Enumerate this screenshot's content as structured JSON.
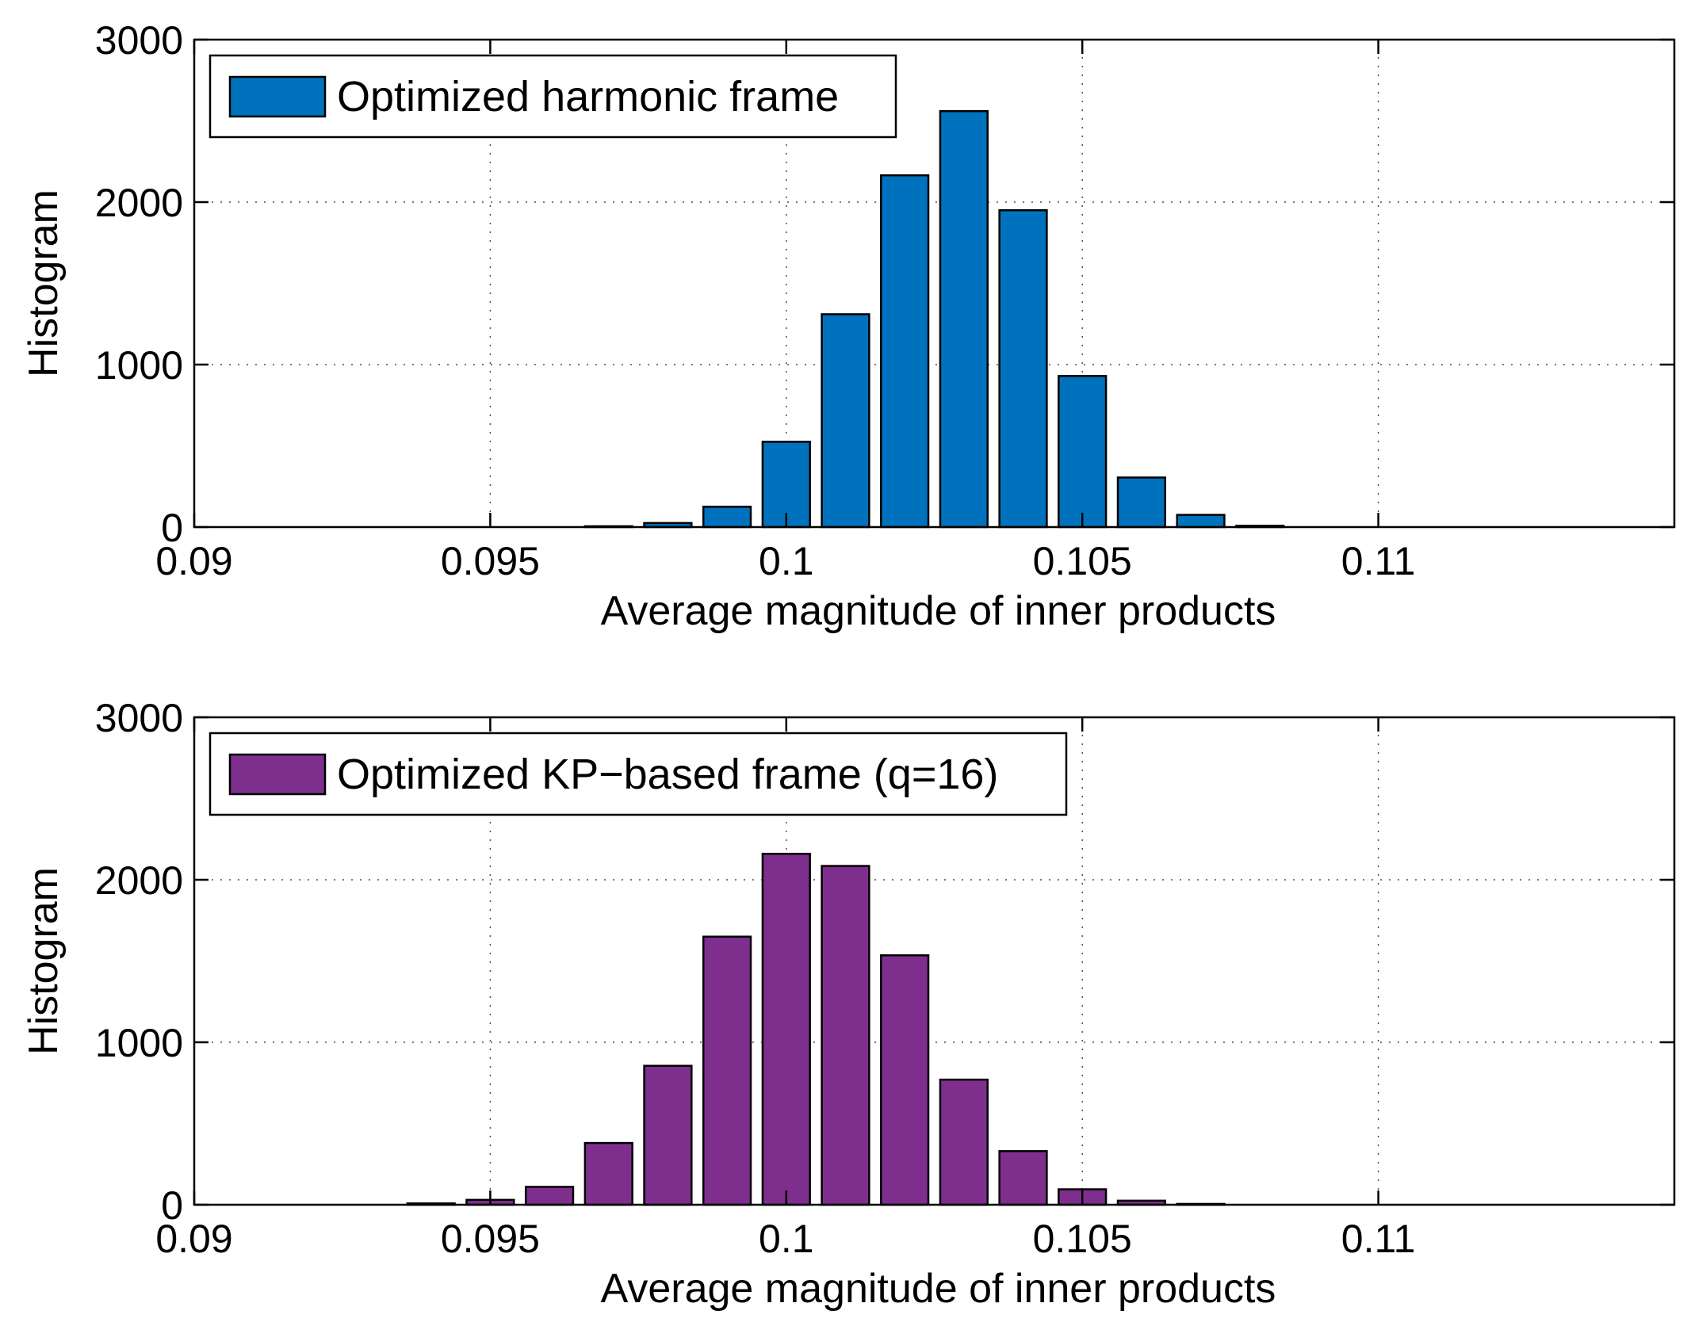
{
  "chart_data": [
    {
      "type": "bar",
      "title": "",
      "xlabel": "Average magnitude of inner products",
      "ylabel": "Histogram",
      "xlim": [
        0.09,
        0.115
      ],
      "ylim": [
        0,
        3000
      ],
      "grid": true,
      "legend_position": "top-left",
      "x_ticks": [
        "0.09",
        "0.095",
        "0.1",
        "0.105",
        "0.11"
      ],
      "y_ticks": [
        "0",
        "1000",
        "2000",
        "3000"
      ],
      "series": [
        {
          "name": "Optimized harmonic frame",
          "color": "#0072BD",
          "bin_centers": [
            0.097,
            0.098,
            0.099,
            0.1,
            0.101,
            0.102,
            0.103,
            0.104,
            0.105,
            0.106,
            0.107,
            0.108
          ],
          "values": [
            5,
            25,
            125,
            525,
            1310,
            2165,
            2560,
            1950,
            930,
            305,
            75,
            8
          ]
        }
      ]
    },
    {
      "type": "bar",
      "title": "",
      "xlabel": "Average magnitude of inner products",
      "ylabel": "Histogram",
      "xlim": [
        0.09,
        0.115
      ],
      "ylim": [
        0,
        3000
      ],
      "grid": true,
      "legend_position": "top-left",
      "x_ticks": [
        "0.09",
        "0.095",
        "0.1",
        "0.105",
        "0.11"
      ],
      "y_ticks": [
        "0",
        "1000",
        "2000",
        "3000"
      ],
      "series": [
        {
          "name": "Optimized KP−based frame (q=16)",
          "color": "#7E2F8E",
          "bin_centers": [
            0.094,
            0.095,
            0.096,
            0.097,
            0.098,
            0.099,
            0.1,
            0.101,
            0.102,
            0.103,
            0.104,
            0.105,
            0.106,
            0.107
          ],
          "values": [
            8,
            30,
            110,
            380,
            855,
            1650,
            2160,
            2085,
            1535,
            770,
            330,
            95,
            25,
            5
          ]
        }
      ]
    }
  ]
}
